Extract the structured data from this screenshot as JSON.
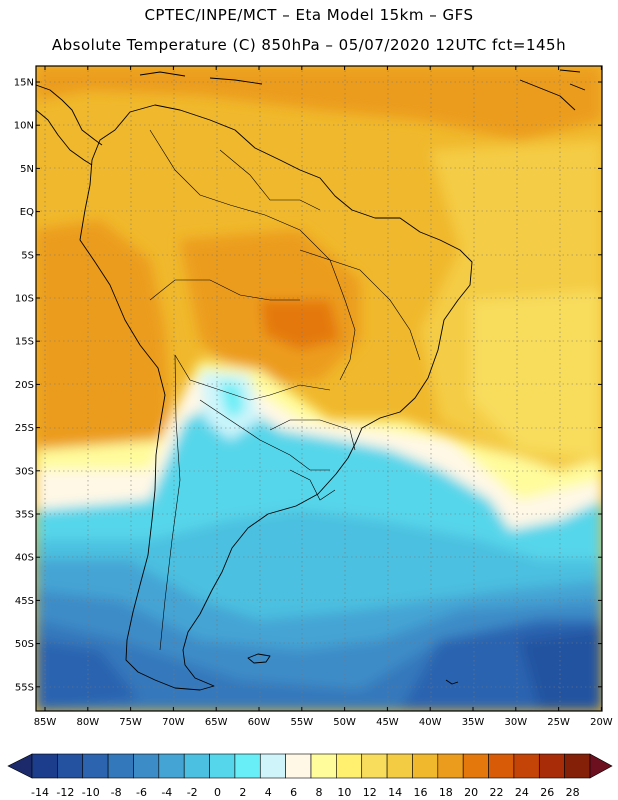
{
  "header": {
    "line1": "CPTEC/INPE/MCT –  Eta Model 15km – GFS",
    "line2": "Absolute Temperature (C) 850hPa – 05/07/2020 12UTC fct=145h"
  },
  "lat_labels": [
    "15N",
    "10N",
    "5N",
    "EQ",
    "5S",
    "10S",
    "15S",
    "20S",
    "25S",
    "30S",
    "35S",
    "40S",
    "45S",
    "50S",
    "55S"
  ],
  "lon_labels": [
    "85W",
    "80W",
    "75W",
    "70W",
    "65W",
    "60W",
    "55W",
    "50W",
    "45W",
    "40W",
    "35W",
    "30W",
    "25W",
    "20W"
  ],
  "colorbar": {
    "ticks": [
      "-14",
      "-12",
      "-10",
      "-8",
      "-6",
      "-4",
      "-2",
      "0",
      "2",
      "4",
      "6",
      "8",
      "10",
      "12",
      "14",
      "16",
      "18",
      "20",
      "22",
      "24",
      "26",
      "28"
    ],
    "colors": [
      "#1c3c8c",
      "#2452a0",
      "#2c64b0",
      "#3478bc",
      "#3c8cc8",
      "#44a4d4",
      "#4cc0e0",
      "#56d6ea",
      "#68eef6",
      "#cff5fb",
      "#fff8e6",
      "#fffc9c",
      "#fff070",
      "#f8dc5c",
      "#f4cc44",
      "#f0b82c",
      "#ec9c1c",
      "#e4780c",
      "#d85c08",
      "#c44408",
      "#a82c08",
      "#842008"
    ],
    "end_low": "#1c2a6c",
    "end_high": "#6c1020"
  }
}
